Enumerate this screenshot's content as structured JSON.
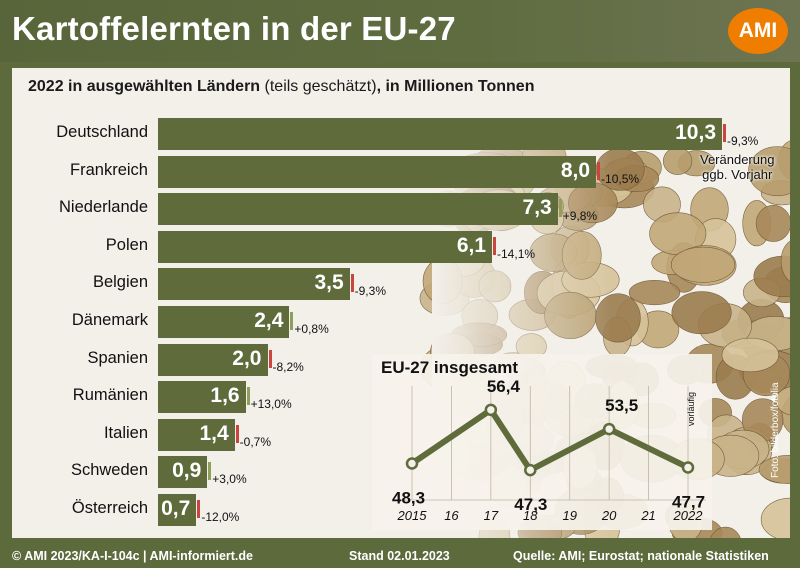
{
  "header": {
    "title": "Kartoffelernten in der EU-27",
    "logo": "AMI"
  },
  "subtitle": {
    "bold_part": "2022 in ausgewählten Ländern",
    "normal_part": " (teils geschätzt)",
    "bold_tail": ", in Millionen Tonnen"
  },
  "change_note": {
    "line1": "Veränderung",
    "line2": "ggb. Vorjahr"
  },
  "colors": {
    "bar": "#5f6b3b",
    "negative": "#c9453e",
    "positive": "#8fa05a",
    "logo": "#ef7d00"
  },
  "chart_data": [
    {
      "type": "bar",
      "title": "2022 in ausgewählten Ländern (teils geschätzt), in Millionen Tonnen",
      "categories": [
        "Deutschland",
        "Frankreich",
        "Niederlande",
        "Polen",
        "Belgien",
        "Dänemark",
        "Spanien",
        "Rumänien",
        "Italien",
        "Schweden",
        "Österreich"
      ],
      "values": [
        10.3,
        8.0,
        7.3,
        6.1,
        3.5,
        2.4,
        2.0,
        1.6,
        1.4,
        0.9,
        0.7
      ],
      "value_labels": [
        "10,3",
        "8,0",
        "7,3",
        "6,1",
        "3,5",
        "2,4",
        "2,0",
        "1,6",
        "1,4",
        "0,9",
        "0,7"
      ],
      "change_labels": [
        "-9,3%",
        "-10,5%",
        "+9,8%",
        "-14,1%",
        "-9,3%",
        "+0,8%",
        "-8,2%",
        "+13,0%",
        "-0,7%",
        "+3,0%",
        "-12,0%"
      ],
      "change_values": [
        -9.3,
        -10.5,
        9.8,
        -14.1,
        -9.3,
        0.8,
        -8.2,
        13.0,
        -0.7,
        3.0,
        -12.0
      ]
    },
    {
      "type": "line",
      "title": "EU-27 insgesamt",
      "x": [
        "2015",
        "16",
        "17",
        "18",
        "19",
        "20",
        "21",
        "2022"
      ],
      "points": [
        {
          "x": "2015",
          "y": 48.3,
          "label": "48,3"
        },
        {
          "x": "17",
          "y": 56.4,
          "label": "56,4"
        },
        {
          "x": "18",
          "y": 47.3,
          "label": "47,3"
        },
        {
          "x": "20",
          "y": 53.5,
          "label": "53,5"
        },
        {
          "x": "2022",
          "y": 47.7,
          "label": "47,7"
        }
      ],
      "note": "vorläufig",
      "grid": true
    }
  ],
  "photo_credit": "Foto: bilderbox/fotolia",
  "footer": {
    "left": "© AMI 2023/KA-I-104c | AMI-informiert.de",
    "middle": "Stand 02.01.2023",
    "right": "Quelle: AMI; Eurostat; nationale Statistiken"
  }
}
